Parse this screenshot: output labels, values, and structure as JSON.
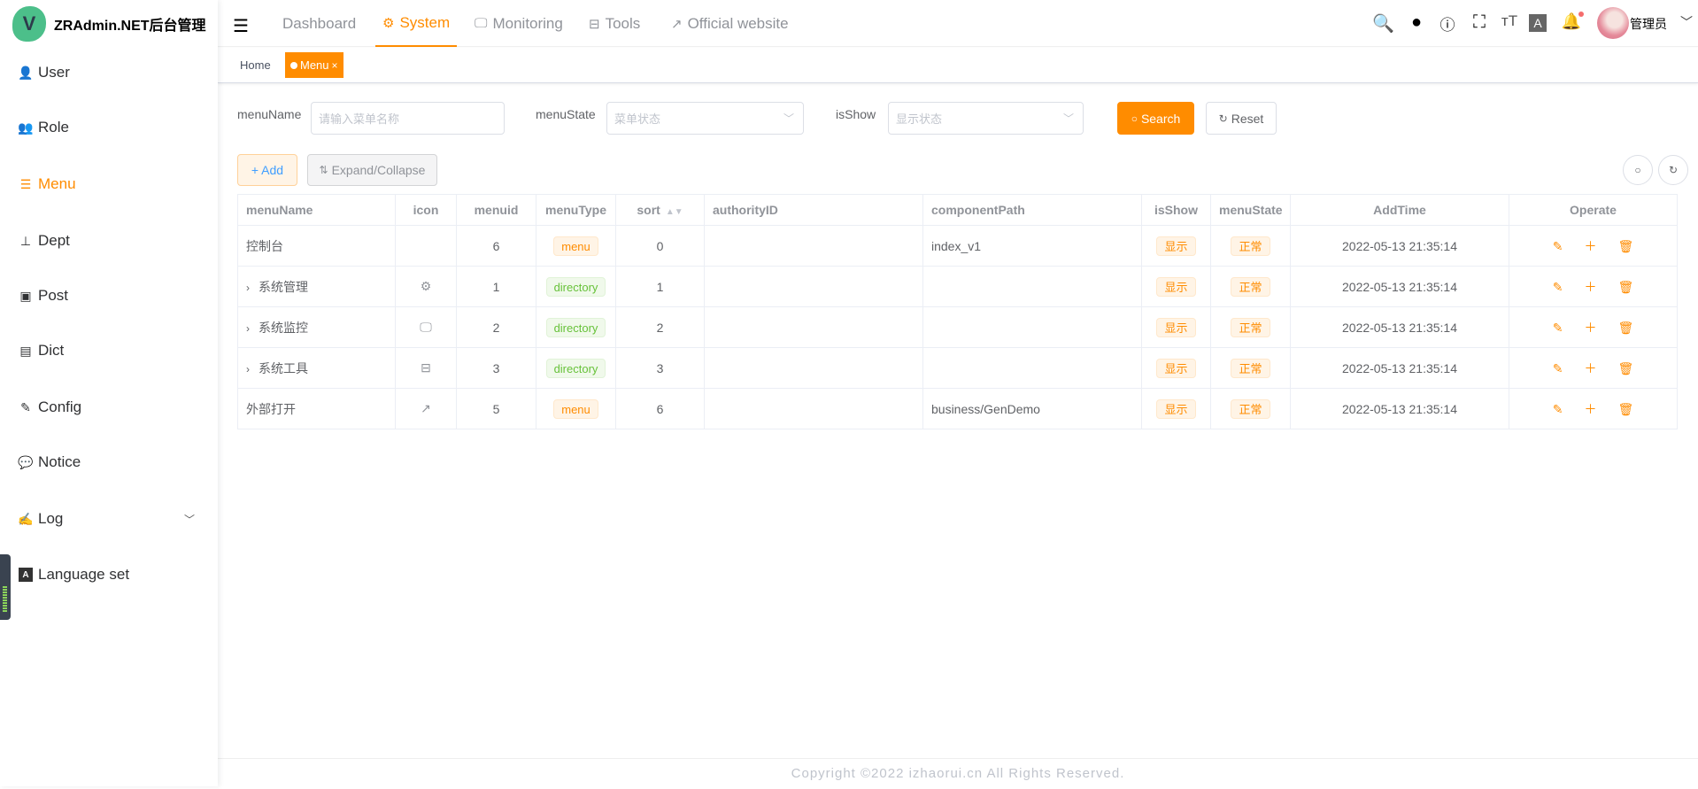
{
  "app": {
    "logo_letter": "V",
    "title": "ZRAdmin.NET后台管理"
  },
  "sidebar": {
    "items": [
      {
        "label": "User",
        "icon": "user-icon"
      },
      {
        "label": "Role",
        "icon": "users-icon"
      },
      {
        "label": "Menu",
        "icon": "tree-table-icon",
        "active": true
      },
      {
        "label": "Dept",
        "icon": "tree-icon"
      },
      {
        "label": "Post",
        "icon": "post-icon"
      },
      {
        "label": "Dict",
        "icon": "dict-icon"
      },
      {
        "label": "Config",
        "icon": "edit-icon"
      },
      {
        "label": "Notice",
        "icon": "message-icon"
      },
      {
        "label": "Log",
        "icon": "log-icon",
        "expandable": true
      },
      {
        "label": "Language set",
        "icon": "language-icon"
      }
    ]
  },
  "header": {
    "nav": [
      {
        "label": "Dashboard"
      },
      {
        "label": "System",
        "icon": "gear-icon",
        "active": true
      },
      {
        "label": "Monitoring",
        "icon": "monitor-icon"
      },
      {
        "label": "Tools",
        "icon": "toolbox-icon"
      },
      {
        "label": "Official website",
        "icon": "external-link-icon"
      }
    ],
    "user_name": "管理员",
    "has_notification": true
  },
  "tags": {
    "home": "Home",
    "current": "Menu"
  },
  "filters": {
    "menuName": {
      "label": "menuName",
      "placeholder": "请输入菜单名称"
    },
    "menuState": {
      "label": "menuState",
      "placeholder": "菜单状态"
    },
    "isShow": {
      "label": "isShow",
      "placeholder": "显示状态"
    },
    "search": "Search",
    "reset": "Reset"
  },
  "toolbar": {
    "add": "+ Add",
    "expand": "Expand/Collapse"
  },
  "table": {
    "columns": [
      "menuName",
      "icon",
      "menuid",
      "menuType",
      "sort",
      "authorityID",
      "componentPath",
      "isShow",
      "menuState",
      "AddTime",
      "Operate"
    ],
    "rows": [
      {
        "name": "控制台",
        "icon": "",
        "id": "6",
        "type": "menu",
        "sort": "0",
        "auth": "",
        "path": "index_v1",
        "show": "显示",
        "state": "正常",
        "time": "2022-05-13 21:35:14",
        "expandable": false
      },
      {
        "name": "系统管理",
        "icon": "gear-icon",
        "id": "1",
        "type": "directory",
        "sort": "1",
        "auth": "",
        "path": "",
        "show": "显示",
        "state": "正常",
        "time": "2022-05-13 21:35:14",
        "expandable": true
      },
      {
        "name": "系统监控",
        "icon": "monitor-icon",
        "id": "2",
        "type": "directory",
        "sort": "2",
        "auth": "",
        "path": "",
        "show": "显示",
        "state": "正常",
        "time": "2022-05-13 21:35:14",
        "expandable": true
      },
      {
        "name": "系统工具",
        "icon": "toolbox-icon",
        "id": "3",
        "type": "directory",
        "sort": "3",
        "auth": "",
        "path": "",
        "show": "显示",
        "state": "正常",
        "time": "2022-05-13 21:35:14",
        "expandable": true
      },
      {
        "name": "外部打开",
        "icon": "external-link-icon",
        "id": "5",
        "type": "menu",
        "sort": "6",
        "auth": "",
        "path": "business/GenDemo",
        "show": "显示",
        "state": "正常",
        "time": "2022-05-13 21:35:14",
        "expandable": false
      }
    ]
  },
  "footer": "Copyright ©2022 izhaorui.cn All Rights Reserved.",
  "colors": {
    "accent": "#ff8c00",
    "success": "#67c23a",
    "logo": "#4cbf8a"
  }
}
